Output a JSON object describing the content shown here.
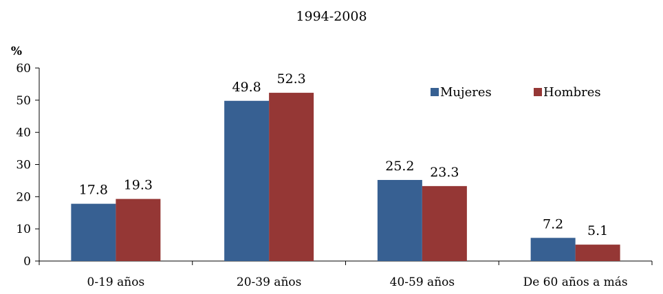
{
  "chart_data": {
    "type": "bar",
    "title": "1994-2008",
    "ylabel": "%",
    "xlabel": "",
    "ylim": [
      0,
      60
    ],
    "yticks": [
      "0",
      "10",
      "20",
      "30",
      "40",
      "50",
      "60"
    ],
    "categories": [
      "0-19 años",
      "20-39 años",
      "40-59 años",
      "De 60 años a más"
    ],
    "series": [
      {
        "name": "Mujeres",
        "color": "#376092",
        "values": [
          17.8,
          49.8,
          25.2,
          7.2
        ],
        "labels": [
          "17.8",
          "49.8",
          "25.2",
          "7.2"
        ]
      },
      {
        "name": "Hombres",
        "color": "#953735",
        "values": [
          19.3,
          52.3,
          23.3,
          5.1
        ],
        "labels": [
          "19.3",
          "52.3",
          "23.3",
          "5.1"
        ]
      }
    ],
    "legend_position": "top-right",
    "grid": false
  }
}
